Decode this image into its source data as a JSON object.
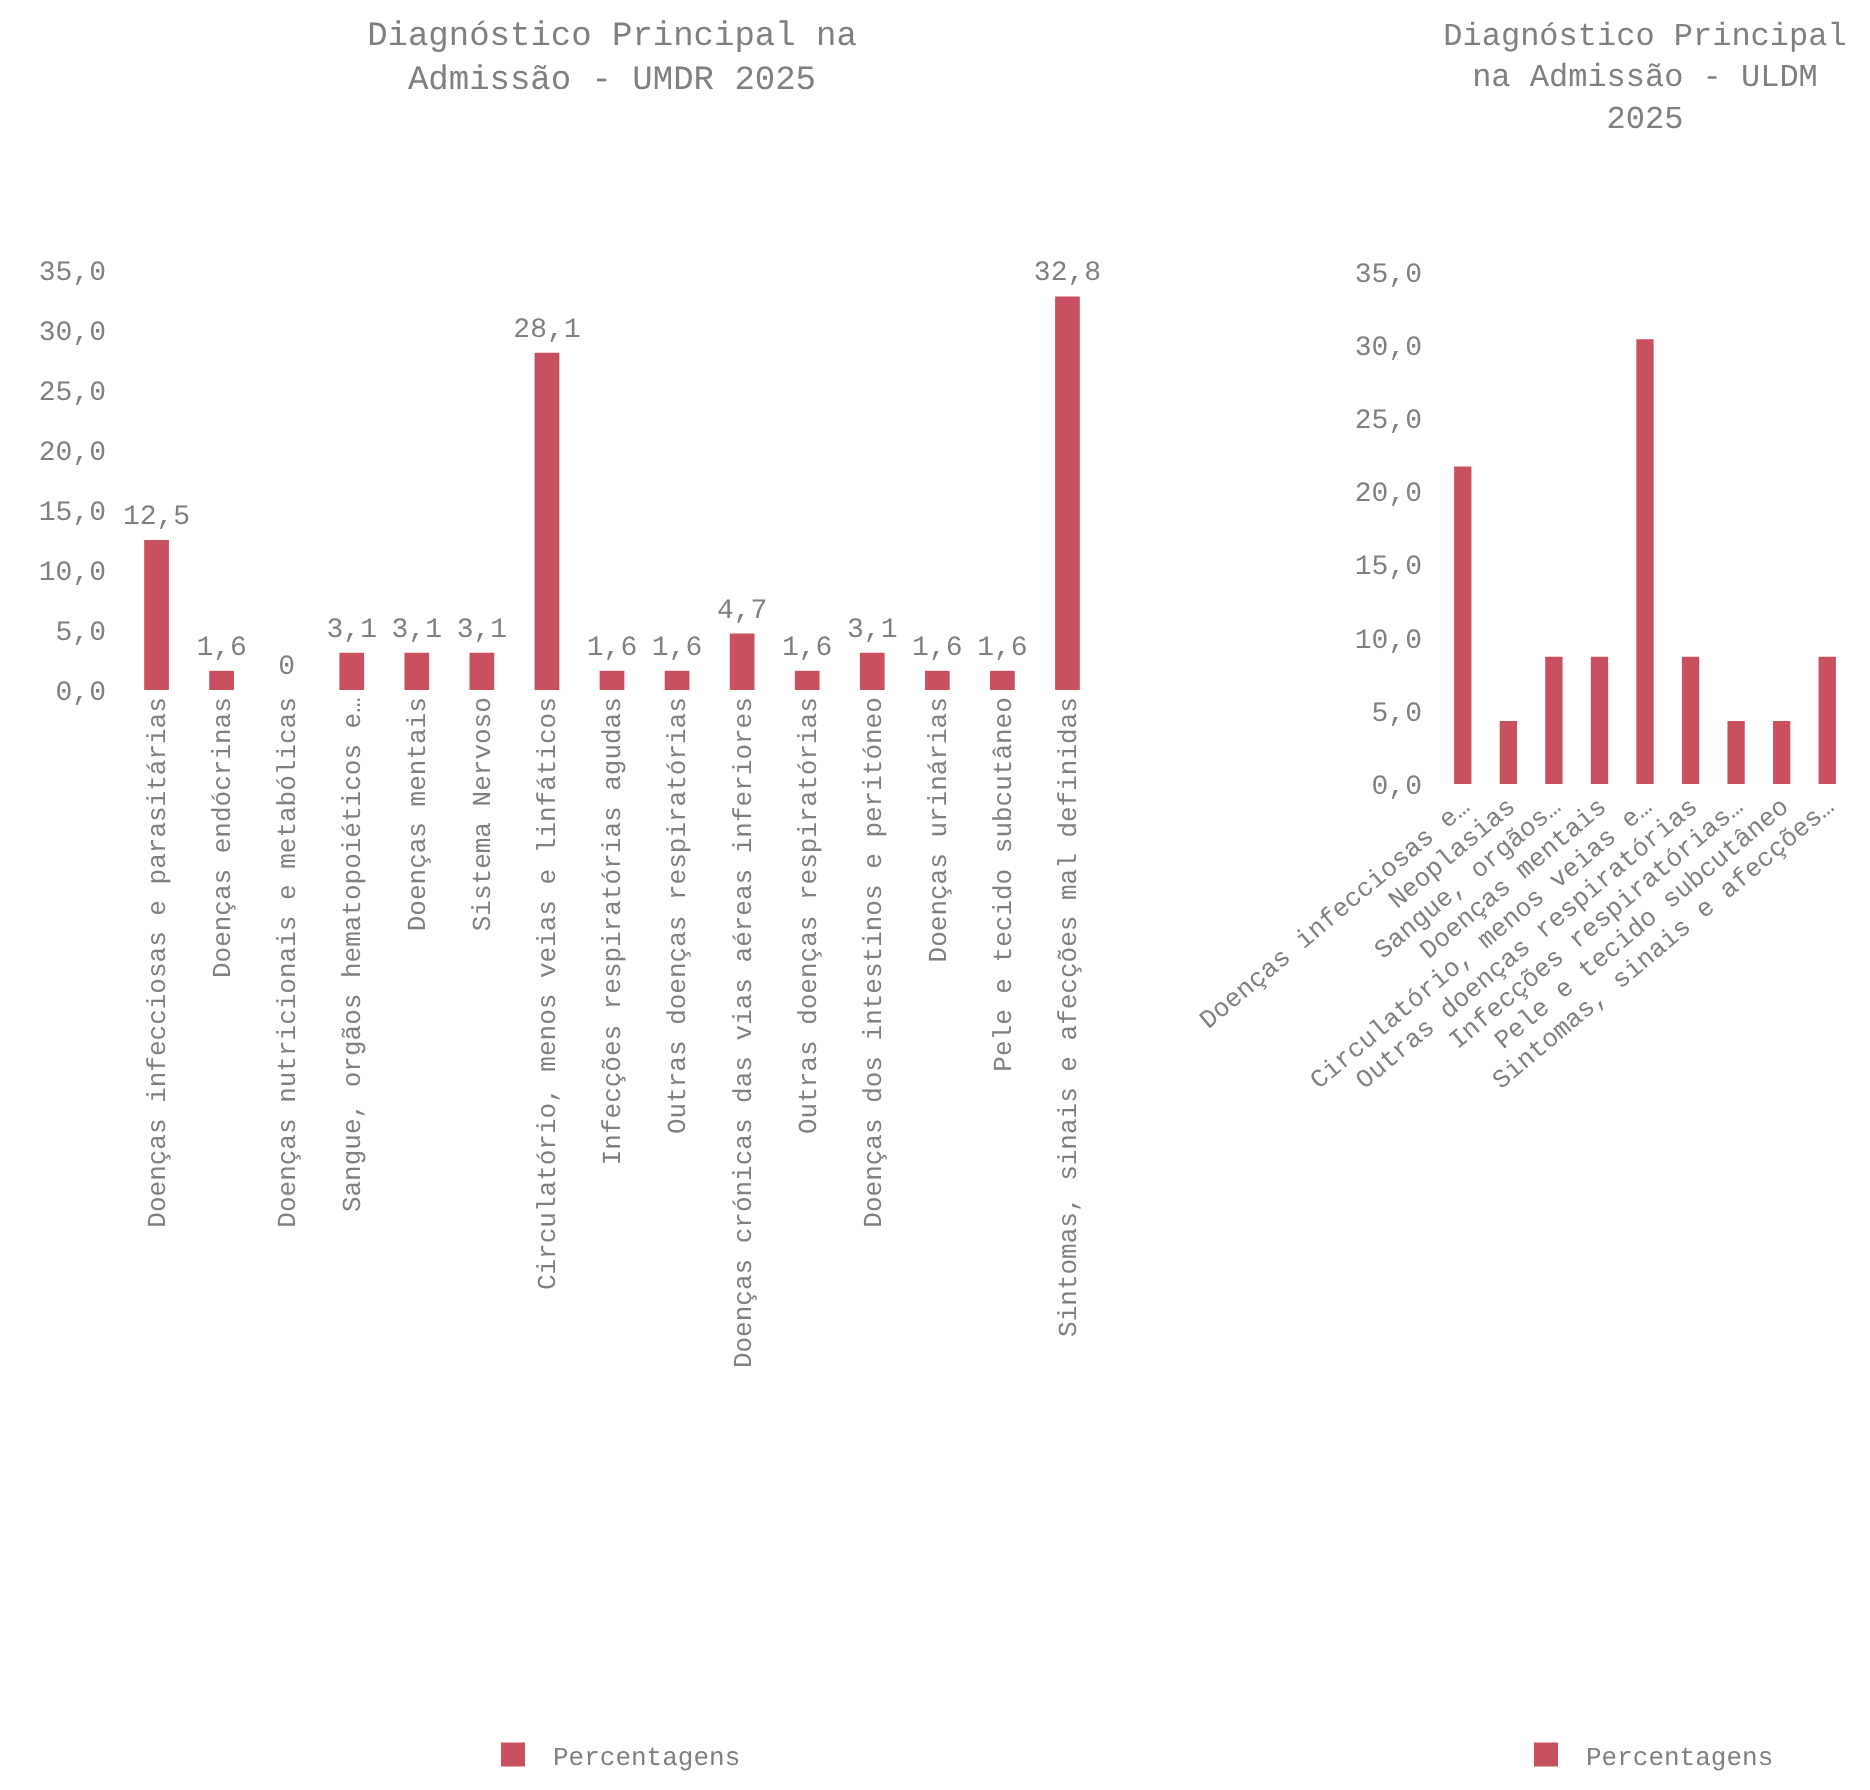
{
  "chart_data": [
    {
      "type": "bar",
      "title": "Diagnóstico Principal na Admissão - UMDR 2025",
      "categories": [
        "Doenças infecciosas e parasitárias",
        "Doenças endócrinas",
        "Doenças nutricionais e metabólicas",
        "Sangue, orgãos hematopoiéticos e…",
        "Doenças mentais",
        "Sistema Nervoso",
        "Circulatório, menos veias e linfáticos",
        "Infecções respiratórias agudas",
        "Outras doenças respiratórias",
        "Doenças crónicas das vias aéreas inferiores",
        "Outras doenças respiratórias",
        "Doenças dos intestinos e peritóneo",
        "Doenças urinárias",
        "Pele e tecido subcutâneo",
        "Sintomas, sinais e afecções mal definidas"
      ],
      "series": [
        {
          "name": "Percentagens",
          "color": "#c9505f",
          "values": [
            12.5,
            1.6,
            0,
            3.1,
            3.1,
            3.1,
            28.1,
            1.6,
            1.6,
            4.7,
            1.6,
            3.1,
            1.6,
            1.6,
            32.8
          ],
          "value_labels": [
            "12,5",
            "1,6",
            "0",
            "3,1",
            "3,1",
            "3,1",
            "28,1",
            "1,6",
            "1,6",
            "4,7",
            "1,6",
            "3,1",
            "1,6",
            "1,6",
            "32,8"
          ]
        }
      ],
      "ylim": [
        0,
        35
      ],
      "yticks": [
        {
          "value": 0,
          "label": "0,0"
        },
        {
          "value": 5,
          "label": "5,0"
        },
        {
          "value": 10,
          "label": "10,0"
        },
        {
          "value": 15,
          "label": "15,0"
        },
        {
          "value": 20,
          "label": "20,0"
        },
        {
          "value": 25,
          "label": "25,0"
        },
        {
          "value": 30,
          "label": "30,0"
        },
        {
          "value": 35,
          "label": "35,0"
        }
      ],
      "legend": "bottom"
    },
    {
      "type": "bar",
      "title": "Diagnóstico Principal na Admissão - ULDM 2025",
      "categories": [
        "Doenças infecciosas e…",
        "Neoplasias",
        "Sangue, orgãos…",
        "Doenças mentais",
        "Circulatório, menos veias e…",
        "Outras doenças respiratórias",
        "Infecções respiratórias…",
        "Pele e tecido subcutâneo",
        "Sintomas, sinais e afecções…"
      ],
      "series": [
        {
          "name": "Percentagens",
          "color": "#c9505f",
          "values": [
            21.7,
            4.3,
            8.7,
            8.7,
            30.4,
            8.7,
            4.3,
            4.3,
            8.7
          ]
        }
      ],
      "ylim": [
        0,
        35
      ],
      "yticks": [
        {
          "value": 0,
          "label": "0,0"
        },
        {
          "value": 5,
          "label": "5,0"
        },
        {
          "value": 10,
          "label": "10,0"
        },
        {
          "value": 15,
          "label": "15,0"
        },
        {
          "value": 20,
          "label": "20,0"
        },
        {
          "value": 25,
          "label": "25,0"
        },
        {
          "value": 30,
          "label": "30,0"
        },
        {
          "value": 35,
          "label": "35,0"
        }
      ],
      "legend": "bottom"
    }
  ]
}
